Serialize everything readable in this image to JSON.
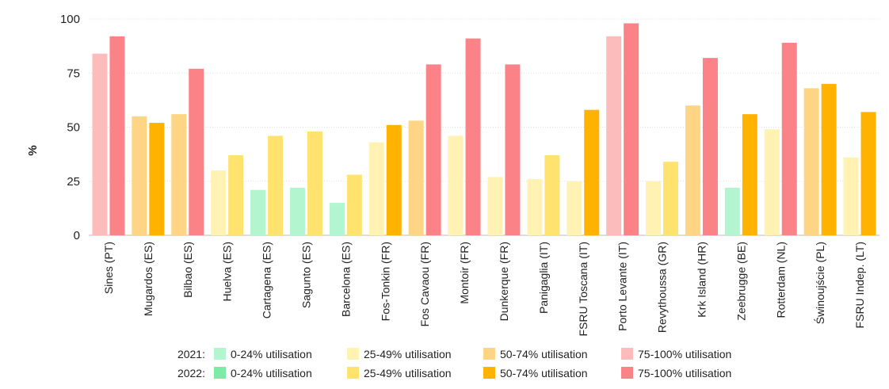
{
  "chart_data": {
    "type": "bar",
    "ylabel": "%",
    "ylim": [
      0,
      100
    ],
    "yticks": [
      "0",
      "25",
      "50",
      "75",
      "100"
    ],
    "grid": true,
    "legend_position": "bottom",
    "categories": [
      "Sines (PT)",
      "Mugardos (ES)",
      "Bilbao (ES)",
      "Huelva (ES)",
      "Cartagena (ES)",
      "Sagunto (ES)",
      "Barcelona (ES)",
      "Fos-Tonkin (FR)",
      "Fos Cavaou (FR)",
      "Montoir (FR)",
      "Dunkerque (FR)",
      "Panigaglia (IT)",
      "FSRU Toscana (IT)",
      "Porto Levante (IT)",
      "Revythoussa (GR)",
      "Krk Island (HR)",
      "Zeebrugge (BE)",
      "Rotterdam (NL)",
      "Świnoujście (PL)",
      "FSRU Indep. (LT)"
    ],
    "series": [
      {
        "name": "2021",
        "values": [
          84,
          55,
          56,
          30,
          21,
          22,
          15,
          43,
          53,
          46,
          27,
          26,
          25,
          92,
          25,
          60,
          22,
          49,
          68,
          36
        ]
      },
      {
        "name": "2022",
        "values": [
          92,
          52,
          77,
          37,
          46,
          48,
          28,
          51,
          79,
          91,
          79,
          37,
          58,
          98,
          34,
          82,
          56,
          89,
          70,
          57
        ]
      }
    ],
    "band_colors": {
      "2021": [
        "#b3f5cf",
        "#fff2b3",
        "#fdd584",
        "#fcbcbc"
      ],
      "2022": [
        "#7ceba6",
        "#ffe36e",
        "#ffb300",
        "#fb8286"
      ]
    },
    "legend": {
      "rows": [
        {
          "label": "2021:",
          "year": "2021"
        },
        {
          "label": "2022:",
          "year": "2022"
        }
      ],
      "items": [
        "0-24% utilisation",
        "25-49% utilisation",
        "50-74% utilisation",
        "75-100% utilisation"
      ]
    }
  }
}
